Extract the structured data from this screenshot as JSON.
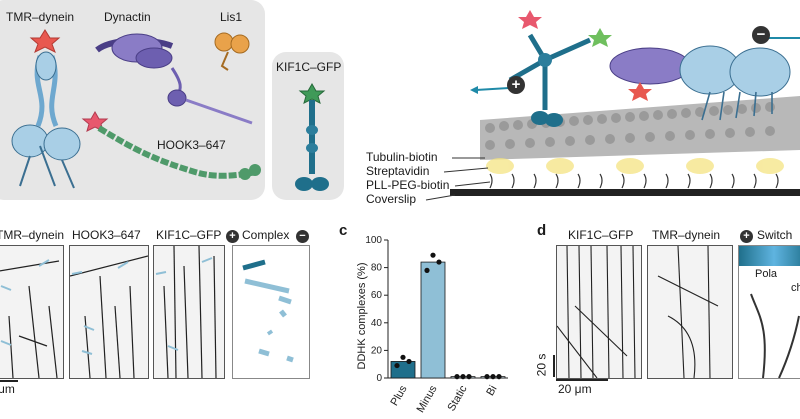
{
  "panel_a": {
    "labels": {
      "tmr_dynein": "TMR–dynein",
      "dynactin": "Dynactin",
      "lis1": "Lis1",
      "hook3": "HOOK3–647",
      "kif1c": "KIF1C–GFP"
    }
  },
  "panel_b": {
    "layers": {
      "tubulin": "Tubulin-biotin",
      "streptavidin": "Streptavidin",
      "pll_peg": "PLL-PEG-biotin",
      "coverslip": "Coverslip"
    },
    "plus_symbol": "+",
    "minus_symbol": "−"
  },
  "panel_kymo": {
    "headers": {
      "tmr_dynein": "TMR–dynein",
      "hook3": "HOOK3–647",
      "kif1c": "KIF1C–GFP",
      "complex": "Complex"
    },
    "plus_symbol": "+",
    "minus_symbol": "−",
    "scale": "μm"
  },
  "panel_c": {
    "letter": "c",
    "chart_data": {
      "type": "bar",
      "categories": [
        "Plus",
        "Minus",
        "Static",
        "Bi"
      ],
      "values": [
        12,
        84,
        1,
        1
      ],
      "points": [
        [
          9,
          15,
          12
        ],
        [
          78,
          89,
          84
        ],
        [
          1,
          1,
          1
        ],
        [
          1,
          1,
          1
        ]
      ],
      "ylabel": "DDHK complexes (%)",
      "yticks": [
        "0",
        "20",
        "40",
        "60",
        "80",
        "100"
      ],
      "ylim": [
        0,
        100
      ],
      "colors": [
        "#1f6f8b",
        "#8fbfd6",
        "#cfe3ee",
        "#cfe3ee"
      ]
    }
  },
  "panel_d": {
    "letter": "d",
    "headers": {
      "kif1c": "KIF1C–GFP",
      "tmr_dynein": "TMR–dynein",
      "switch": "Switch"
    },
    "plus_symbol": "+",
    "time_scale": "20 s",
    "space_scale": "20 μm",
    "pola_text": "Pola",
    "ch_text": "ch"
  }
}
